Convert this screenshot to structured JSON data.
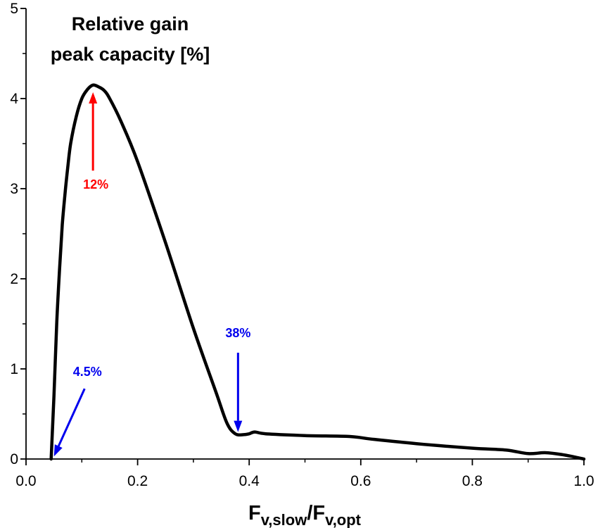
{
  "chart_data": {
    "type": "line",
    "title_lines": [
      "Relative gain",
      "peak capacity [%]"
    ],
    "xlabel": {
      "main1": "F",
      "sub1": "v,slow",
      "sep": "/F",
      "sub2": "v,opt"
    },
    "xlim": [
      0.0,
      1.0
    ],
    "ylim": [
      0,
      5
    ],
    "x_ticks": [
      0.0,
      0.2,
      0.4,
      0.6,
      0.8,
      1.0
    ],
    "x_tick_labels": [
      "0.0",
      "0.2",
      "0.4",
      "0.6",
      "0.8",
      "1.0"
    ],
    "y_ticks": [
      0,
      1,
      2,
      3,
      4,
      5
    ],
    "y_tick_labels": [
      "0",
      "1",
      "2",
      "3",
      "4",
      "5"
    ],
    "grid": false,
    "series": [
      {
        "color": "#000000",
        "points": [
          [
            0.045,
            0.0
          ],
          [
            0.05,
            0.7
          ],
          [
            0.055,
            1.5
          ],
          [
            0.06,
            2.1
          ],
          [
            0.065,
            2.6
          ],
          [
            0.07,
            2.95
          ],
          [
            0.075,
            3.25
          ],
          [
            0.08,
            3.5
          ],
          [
            0.09,
            3.8
          ],
          [
            0.1,
            4.0
          ],
          [
            0.11,
            4.1
          ],
          [
            0.12,
            4.15
          ],
          [
            0.13,
            4.13
          ],
          [
            0.14,
            4.09
          ],
          [
            0.15,
            4.0
          ],
          [
            0.17,
            3.75
          ],
          [
            0.2,
            3.3
          ],
          [
            0.25,
            2.4
          ],
          [
            0.3,
            1.45
          ],
          [
            0.34,
            0.75
          ],
          [
            0.36,
            0.4
          ],
          [
            0.375,
            0.28
          ],
          [
            0.39,
            0.27
          ],
          [
            0.4,
            0.28
          ],
          [
            0.41,
            0.3
          ],
          [
            0.43,
            0.28
          ],
          [
            0.5,
            0.26
          ],
          [
            0.58,
            0.25
          ],
          [
            0.62,
            0.22
          ],
          [
            0.7,
            0.17
          ],
          [
            0.8,
            0.12
          ],
          [
            0.86,
            0.1
          ],
          [
            0.9,
            0.06
          ],
          [
            0.93,
            0.07
          ],
          [
            0.96,
            0.05
          ],
          [
            0.985,
            0.02
          ],
          [
            1.0,
            0.0
          ]
        ]
      }
    ],
    "annotations": [
      {
        "label": "12%",
        "color": "#ff0000",
        "text_at": [
          0.125,
          3.0
        ],
        "arrow_from": [
          0.12,
          3.2
        ],
        "arrow_to": [
          0.12,
          4.07
        ]
      },
      {
        "label": "38%",
        "color": "#0000ee",
        "text_at": [
          0.38,
          1.35
        ],
        "arrow_from": [
          0.38,
          1.18
        ],
        "arrow_to": [
          0.38,
          0.3
        ]
      },
      {
        "label": "4.5%",
        "color": "#0000ee",
        "text_at": [
          0.11,
          0.92
        ],
        "arrow_from": [
          0.105,
          0.78
        ],
        "arrow_to": [
          0.05,
          0.03
        ]
      }
    ]
  }
}
